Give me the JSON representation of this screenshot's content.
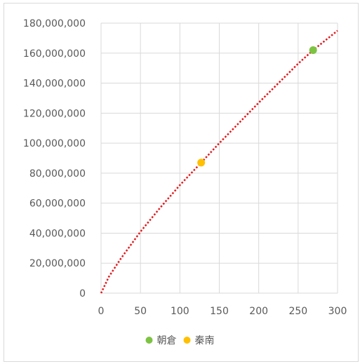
{
  "chart_data": {
    "type": "scatter",
    "xlim": [
      0,
      300
    ],
    "ylim": [
      0,
      180000000
    ],
    "x_ticks": [
      "0",
      "50",
      "100",
      "150",
      "200",
      "250",
      "300"
    ],
    "y_ticks": [
      "0",
      "20,000,000",
      "40,000,000",
      "60,000,000",
      "80,000,000",
      "100,000,000",
      "120,000,000",
      "140,000,000",
      "160,000,000",
      "180,000,000"
    ],
    "grid": true,
    "legend_position": "bottom",
    "series": [
      {
        "name": "朝倉",
        "color": "#7dc342",
        "points": [
          {
            "x": 269,
            "y": 162000000
          }
        ]
      },
      {
        "name": "秦南",
        "color": "#ffc000",
        "points": [
          {
            "x": 127,
            "y": 87000000
          }
        ]
      }
    ],
    "trendline": {
      "style": "dotted",
      "color": "#e3171a",
      "points": [
        {
          "x": 0,
          "y": 0
        },
        {
          "x": 10,
          "y": 11000000
        },
        {
          "x": 25,
          "y": 23000000
        },
        {
          "x": 50,
          "y": 41000000
        },
        {
          "x": 75,
          "y": 57000000
        },
        {
          "x": 100,
          "y": 72000000
        },
        {
          "x": 127,
          "y": 87000000
        },
        {
          "x": 150,
          "y": 100000000
        },
        {
          "x": 200,
          "y": 127000000
        },
        {
          "x": 250,
          "y": 153000000
        },
        {
          "x": 269,
          "y": 162000000
        },
        {
          "x": 300,
          "y": 175000000
        }
      ]
    }
  }
}
